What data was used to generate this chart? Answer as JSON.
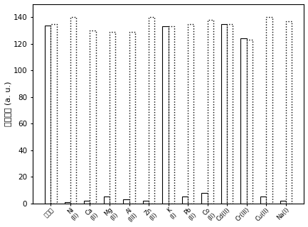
{
  "categories": [
    "无干扰",
    "Ni\n(II)",
    "Ca\n(II)",
    "Mg\n(II)",
    "Al\n(III)",
    "Zn\n(II)",
    "K\n(I)",
    "Pb\n(II)",
    "Co\n(II)",
    "Cd(II)",
    "Cr(III)",
    "Cu(II)",
    "Na(I)"
  ],
  "bar1_values": [
    134,
    1,
    2,
    5,
    3,
    2,
    133,
    5,
    8,
    135,
    124,
    5,
    2
  ],
  "bar2_values": [
    135,
    140,
    130,
    129,
    129,
    140,
    133,
    135,
    138,
    135,
    123,
    140,
    137
  ],
  "ylabel": "荧强度光 (a. u.)",
  "ylim": [
    0,
    150
  ],
  "yticks": [
    0,
    20,
    40,
    60,
    80,
    100,
    120,
    140
  ],
  "bar_width": 0.3,
  "background_color": "#ffffff",
  "bar1_edge_color": "#000000",
  "bar2_edge_color": "#000000",
  "bar1_face_color": "#ffffff",
  "bar2_face_color": "#ffffff",
  "figsize": [
    4.33,
    3.2
  ],
  "dpi": 100
}
